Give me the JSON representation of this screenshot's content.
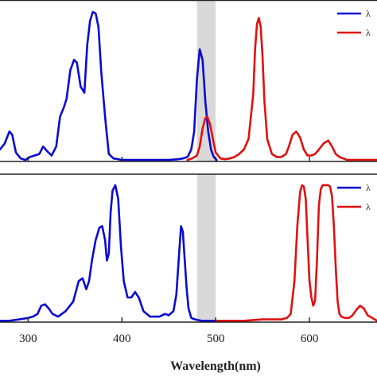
{
  "colors": {
    "excitation": "#0a0ad2",
    "emission": "#e01010",
    "shade": "#d9d9d9",
    "axis": "#222222"
  },
  "chart_data": {
    "type": "line",
    "xlabel": "Wavelength(nm)",
    "xlim": [
      270,
      672
    ],
    "xticks": [
      300,
      400,
      500,
      600
    ],
    "shaded_band": [
      480,
      500
    ],
    "panels": [
      {
        "ylim": [
          0,
          1.08
        ],
        "legend": {
          "placement": "top-right",
          "entries": [
            "λ",
            "λ"
          ]
        },
        "series": [
          {
            "kind": "excitation",
            "color": "#0a0ad2",
            "x": [
              270,
              275,
              280,
              283,
              287,
              292,
              297,
              302,
              307,
              312,
              316,
              320,
              325,
              330,
              334,
              338,
              341,
              345,
              349,
              352,
              356,
              360,
              363,
              366,
              369,
              372,
              375,
              378,
              382,
              386,
              391,
              396,
              400,
              410,
              420,
              430,
              440,
              450,
              460,
              465,
              470,
              474,
              477,
              480,
              483,
              486,
              489,
              492,
              495,
              498,
              501
            ],
            "y": [
              0.08,
              0.12,
              0.2,
              0.18,
              0.06,
              0.02,
              0.01,
              0.03,
              0.04,
              0.05,
              0.1,
              0.07,
              0.04,
              0.1,
              0.3,
              0.36,
              0.42,
              0.61,
              0.68,
              0.66,
              0.5,
              0.46,
              0.78,
              0.94,
              1.0,
              0.99,
              0.9,
              0.6,
              0.3,
              0.05,
              0.02,
              0.015,
              0.01,
              0.01,
              0.01,
              0.01,
              0.01,
              0.01,
              0.015,
              0.02,
              0.03,
              0.08,
              0.2,
              0.55,
              0.75,
              0.68,
              0.4,
              0.2,
              0.08,
              0.03,
              0.01
            ]
          },
          {
            "kind": "emission",
            "color": "#e01010",
            "x": [
              470,
              475,
              480,
              483,
              486,
              489,
              491,
              494,
              497,
              500,
              505,
              510,
              515,
              520,
              525,
              530,
              535,
              540,
              542,
              544,
              546,
              548,
              550,
              552,
              555,
              560,
              565,
              570,
              575,
              578,
              582,
              586,
              590,
              594,
              598,
              602,
              606,
              610,
              615,
              620,
              624,
              628,
              632,
              636,
              640,
              650,
              660,
              672
            ],
            "y": [
              0.01,
              0.02,
              0.04,
              0.1,
              0.22,
              0.29,
              0.3,
              0.25,
              0.15,
              0.06,
              0.02,
              0.015,
              0.02,
              0.03,
              0.05,
              0.08,
              0.15,
              0.45,
              0.75,
              0.92,
              0.96,
              0.9,
              0.7,
              0.4,
              0.15,
              0.05,
              0.03,
              0.03,
              0.05,
              0.1,
              0.18,
              0.2,
              0.16,
              0.08,
              0.04,
              0.04,
              0.05,
              0.08,
              0.12,
              0.14,
              0.1,
              0.05,
              0.03,
              0.02,
              0.01,
              0.01,
              0.01,
              0.01
            ]
          }
        ]
      },
      {
        "ylim": [
          0,
          1.08
        ],
        "legend": {
          "placement": "top-right",
          "entries": [
            "λ",
            "λ"
          ]
        },
        "series": [
          {
            "kind": "excitation",
            "color": "#0a0ad2",
            "x": [
              270,
              280,
              290,
              300,
              305,
              310,
              314,
              318,
              322,
              326,
              332,
              340,
              348,
              354,
              358,
              362,
              365,
              368,
              372,
              376,
              379,
              382,
              384,
              386,
              388,
              390,
              393,
              396,
              399,
              402,
              406,
              410,
              414,
              418,
              423,
              430,
              440,
              446,
              450,
              455,
              458,
              461,
              463,
              465,
              467,
              469,
              471,
              474,
              478,
              485,
              492,
              500
            ],
            "y": [
              0.01,
              0.01,
              0.02,
              0.03,
              0.04,
              0.06,
              0.12,
              0.13,
              0.1,
              0.06,
              0.04,
              0.08,
              0.15,
              0.3,
              0.32,
              0.24,
              0.3,
              0.45,
              0.6,
              0.69,
              0.7,
              0.6,
              0.45,
              0.5,
              0.8,
              0.96,
              1.0,
              0.9,
              0.55,
              0.3,
              0.18,
              0.18,
              0.22,
              0.18,
              0.08,
              0.04,
              0.04,
              0.06,
              0.05,
              0.08,
              0.2,
              0.5,
              0.7,
              0.66,
              0.45,
              0.25,
              0.1,
              0.03,
              0.02,
              0.01,
              0.01,
              0.01
            ]
          },
          {
            "kind": "emission",
            "color": "#e01010",
            "x": [
              500,
              510,
              520,
              530,
              540,
              550,
              560,
              570,
              576,
              580,
              584,
              587,
              590,
              592,
              594,
              596,
              598,
              600,
              602,
              604,
              606,
              608,
              610,
              612,
              614,
              616,
              618,
              620,
              622,
              624,
              626,
              628,
              630,
              632,
              634,
              638,
              642,
              646,
              650,
              654,
              658,
              662,
              672
            ],
            "y": [
              0.01,
              0.01,
              0.01,
              0.01,
              0.015,
              0.02,
              0.02,
              0.02,
              0.03,
              0.06,
              0.3,
              0.7,
              0.95,
              1.0,
              0.99,
              0.9,
              0.6,
              0.3,
              0.18,
              0.12,
              0.16,
              0.45,
              0.85,
              0.97,
              1.0,
              1.0,
              1.0,
              1.0,
              0.99,
              0.92,
              0.7,
              0.4,
              0.15,
              0.06,
              0.04,
              0.03,
              0.03,
              0.05,
              0.09,
              0.12,
              0.1,
              0.05,
              0.01
            ]
          }
        ]
      }
    ]
  }
}
